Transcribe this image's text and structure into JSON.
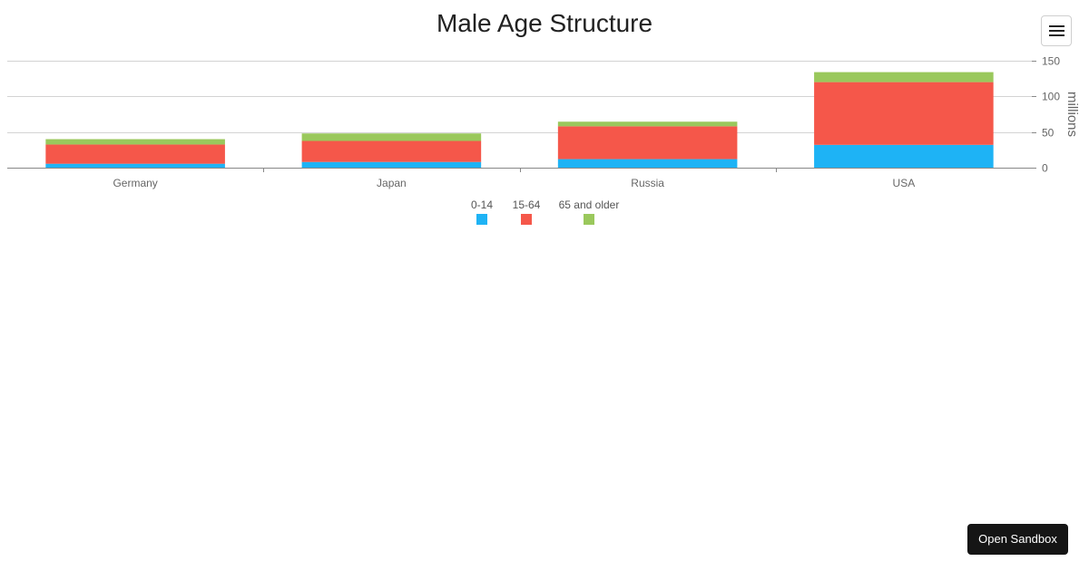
{
  "chart_data": {
    "type": "bar",
    "stacked": true,
    "title": "Male Age Structure",
    "xlabel": "",
    "ylabel": "millions",
    "categories": [
      "Germany",
      "Japan",
      "Russia",
      "USA"
    ],
    "series": [
      {
        "name": "0-14",
        "color": "#1eb3f5",
        "values": [
          5.5,
          8.0,
          12.0,
          32.0
        ]
      },
      {
        "name": "15-64",
        "color": "#f5574a",
        "values": [
          27.0,
          29.5,
          46.0,
          88.0
        ]
      },
      {
        "name": "65 and older",
        "color": "#9ac85c",
        "values": [
          7.5,
          10.5,
          6.5,
          14.0
        ]
      }
    ],
    "ylim": [
      0,
      150
    ],
    "yticks": [
      0,
      50,
      100,
      150
    ],
    "grid": true,
    "y_axis_side": "right",
    "legend_position": "bottom"
  },
  "toolbar": {
    "menu_icon": "hamburger-menu-icon"
  },
  "sandbox": {
    "label": "Open Sandbox"
  }
}
